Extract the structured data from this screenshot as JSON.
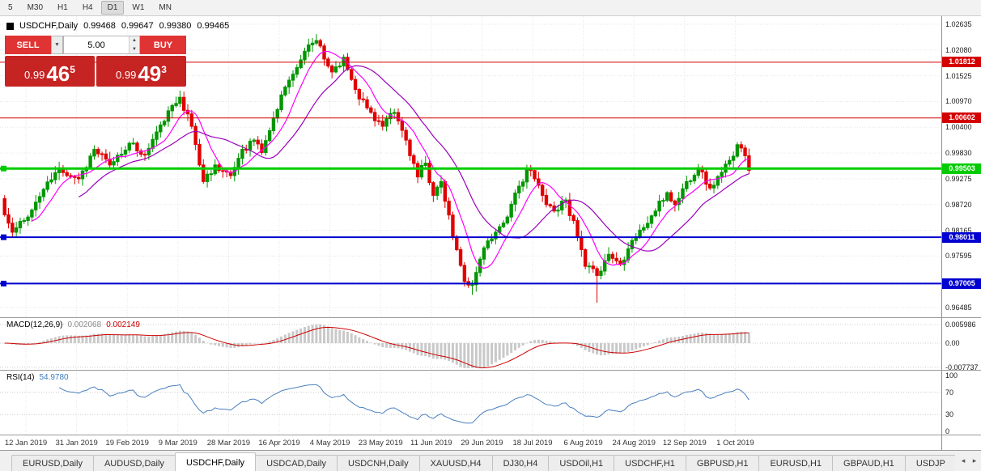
{
  "app": {
    "toolbar_timeframes": [
      "5",
      "M30",
      "H1",
      "H4",
      "D1",
      "W1",
      "MN"
    ],
    "active_timeframe": "D1"
  },
  "header": {
    "symbol": "USDCHF,Daily",
    "open": "0.99468",
    "high": "0.99647",
    "low": "0.99380",
    "close": "0.99465"
  },
  "trade_panel": {
    "sell_label": "SELL",
    "buy_label": "BUY",
    "volume": "5.00",
    "dropdown_icon": "▼",
    "spin_up_icon": "▲",
    "spin_down_icon": "▼",
    "sell_price": {
      "prefix": "0.99",
      "big": "46",
      "sup": "5"
    },
    "buy_price": {
      "prefix": "0.99",
      "big": "49",
      "sup": "3"
    }
  },
  "indicators": {
    "macd": {
      "name": "MACD(12,26,9)",
      "value_main": "0.002068",
      "value_signal": "0.002149",
      "scale": [
        {
          "label": "0.005986",
          "value": 0.005986
        },
        {
          "label": "0.00",
          "value": 0
        },
        {
          "label": "-0.007737",
          "value": -0.007737
        }
      ]
    },
    "rsi": {
      "name": "RSI(14)",
      "value": "54.9780",
      "scale": [
        {
          "label": "100",
          "value": 100
        },
        {
          "label": "70",
          "value": 70
        },
        {
          "label": "30",
          "value": 30
        },
        {
          "label": "0",
          "value": 0
        }
      ],
      "levels": [
        70,
        30
      ]
    }
  },
  "tabs": {
    "items": [
      "EURUSD,Daily",
      "AUDUSD,Daily",
      "USDCHF,Daily",
      "USDCAD,Daily",
      "USDCNH,Daily",
      "XAUUSD,H4",
      "DJ30,H4",
      "USDOil,H1",
      "USDCHF,H1",
      "GBPUSD,H1",
      "EURUSD,H1",
      "GBPAUD,H1",
      "USDJP"
    ],
    "active": "USDCHF,Daily",
    "scroll_left_icon": "◂",
    "scroll_right_icon": "▸"
  },
  "colors": {
    "candle_up": "#009600",
    "candle_down": "#e00000",
    "macd_histogram": "#c9c9c9",
    "macd_signal": "#cc0000",
    "rsi_line": "#4a7fbf",
    "level_red": "#e00000",
    "level_green": "#00cc00",
    "level_blue": "#0000d0",
    "trade_button_red": "#e03434",
    "trade_tile_red": "#c62323"
  },
  "chart_data": {
    "type": "candlestick",
    "symbol": "USDCHF",
    "timeframe": "Daily",
    "ohlc_current": {
      "open": 0.99468,
      "high": 0.99647,
      "low": 0.9938,
      "close": 0.99465
    },
    "current_close": 0.99465,
    "y_axis": {
      "min": 0.96485,
      "max": 1.02635,
      "tick_labels": [
        "1.02635",
        "1.02080",
        "1.01525",
        "1.00970",
        "1.00400",
        "0.99830",
        "0.99275",
        "0.98720",
        "0.98165",
        "0.97595",
        "0.97040",
        "0.96485"
      ]
    },
    "x_axis": {
      "tick_labels": [
        "12 Jan 2019",
        "31 Jan 2019",
        "19 Feb 2019",
        "9 Mar 2019",
        "28 Mar 2019",
        "16 Apr 2019",
        "4 May 2019",
        "23 May 2019",
        "11 Jun 2019",
        "29 Jun 2019",
        "18 Jul 2019",
        "6 Aug 2019",
        "24 Aug 2019",
        "12 Sep 2019",
        "1 Oct 2019"
      ]
    },
    "levels": [
      {
        "price": 1.01812,
        "label": "1.01812",
        "color": "#d40000",
        "thickness": 1,
        "edge_marker": false
      },
      {
        "price": 1.00602,
        "label": "1.00602",
        "color": "#d40000",
        "thickness": 1,
        "edge_marker": false
      },
      {
        "price": 0.99503,
        "label": "0.99503",
        "color": "#00cc00",
        "thickness": 3,
        "edge_marker": true
      },
      {
        "price": 0.98011,
        "label": "0.98011",
        "color": "#0000d0",
        "thickness": 2,
        "edge_marker": true
      },
      {
        "price": 0.97005,
        "label": "0.97005",
        "color": "#0000d0",
        "thickness": 2,
        "edge_marker": true
      }
    ],
    "candle_count": 192,
    "close_anchors": [
      [
        0,
        0.985
      ],
      [
        2,
        0.9812
      ],
      [
        6,
        0.9845
      ],
      [
        10,
        0.9905
      ],
      [
        14,
        0.995
      ],
      [
        19,
        0.9928
      ],
      [
        23,
        0.9992
      ],
      [
        27,
        0.9958
      ],
      [
        32,
        1.0005
      ],
      [
        36,
        0.998
      ],
      [
        40,
        1.0045
      ],
      [
        45,
        1.0105
      ],
      [
        48,
        1.0042
      ],
      [
        51,
        0.9922
      ],
      [
        54,
        0.9958
      ],
      [
        58,
        0.9935
      ],
      [
        61,
        0.9992
      ],
      [
        64,
        1.0012
      ],
      [
        66,
        0.9985
      ],
      [
        69,
        1.006
      ],
      [
        71,
        1.011
      ],
      [
        74,
        1.0155
      ],
      [
        77,
        1.0205
      ],
      [
        80,
        1.0228
      ],
      [
        82,
        1.0188
      ],
      [
        84,
        1.016
      ],
      [
        87,
        1.0192
      ],
      [
        90,
        1.0122
      ],
      [
        93,
        1.0082
      ],
      [
        97,
        1.0042
      ],
      [
        100,
        1.0072
      ],
      [
        103,
        1.0012
      ],
      [
        106,
        0.9932
      ],
      [
        108,
        0.9962
      ],
      [
        110,
        0.9892
      ],
      [
        112,
        0.9922
      ],
      [
        115,
        0.9802
      ],
      [
        118,
        0.9705
      ],
      [
        120,
        0.9698
      ],
      [
        123,
        0.9778
      ],
      [
        126,
        0.9812
      ],
      [
        129,
        0.9845
      ],
      [
        132,
        0.9912
      ],
      [
        134,
        0.995
      ],
      [
        136,
        0.9928
      ],
      [
        138,
        0.9892
      ],
      [
        141,
        0.9858
      ],
      [
        144,
        0.9882
      ],
      [
        147,
        0.9802
      ],
      [
        149,
        0.9738
      ],
      [
        152,
        0.9718
      ],
      [
        155,
        0.9764
      ],
      [
        158,
        0.9742
      ],
      [
        161,
        0.9794
      ],
      [
        164,
        0.9822
      ],
      [
        167,
        0.9858
      ],
      [
        170,
        0.9898
      ],
      [
        172,
        0.9872
      ],
      [
        175,
        0.9922
      ],
      [
        178,
        0.9952
      ],
      [
        181,
        0.9908
      ],
      [
        184,
        0.9942
      ],
      [
        186,
        0.9968
      ],
      [
        188,
        1.0002
      ],
      [
        190,
        0.9978
      ],
      [
        191,
        0.9946
      ]
    ],
    "forced_wicks": [
      {
        "index": 80,
        "type": "high",
        "price": 1.0242
      },
      {
        "index": 120,
        "type": "low",
        "price": 0.9676
      },
      {
        "index": 152,
        "type": "low",
        "price": 0.9659
      }
    ],
    "moving_averages": [
      {
        "period": 8,
        "color": "#ff00ff"
      },
      {
        "period": 20,
        "color": "#9900bb"
      }
    ]
  }
}
